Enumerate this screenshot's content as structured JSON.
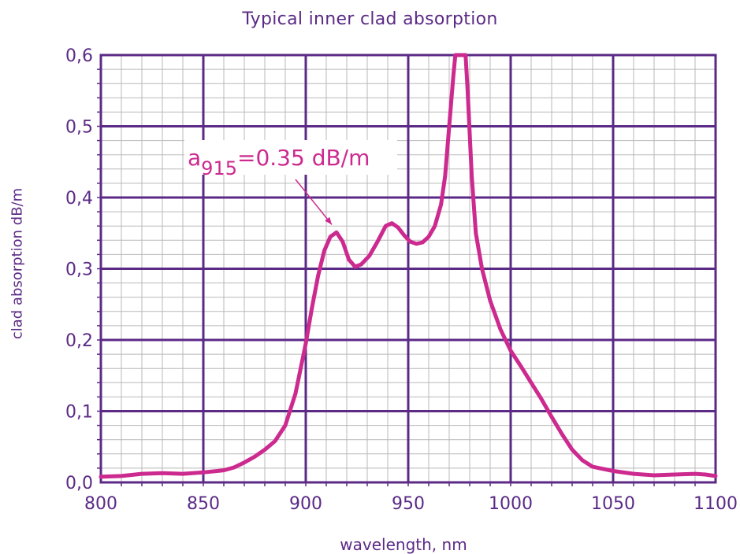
{
  "chart_data": {
    "type": "line",
    "title": "Typical inner clad absorption",
    "xlabel": "wavelength, nm",
    "ylabel": "clad absorption dB/m",
    "xlim": [
      800,
      1100
    ],
    "ylim": [
      0,
      0.6
    ],
    "x_ticks": [
      800,
      850,
      900,
      950,
      1000,
      1050,
      1100
    ],
    "x_tick_labels": [
      "800",
      "850",
      "900",
      "950",
      "1000",
      "1050",
      "1100"
    ],
    "y_ticks": [
      0,
      0.1,
      0.2,
      0.3,
      0.4,
      0.5,
      0.6
    ],
    "y_tick_labels": [
      "0,0",
      "0,1",
      "0,2",
      "0,3",
      "0,4",
      "0,5",
      "0,6"
    ],
    "grid": true,
    "colors": {
      "line": "#cc2a8f",
      "axis": "#5b2a86",
      "minor_grid": "#b9b9b9",
      "text": "#5b2a86"
    },
    "annotation": {
      "main": "a",
      "subscript": "915",
      "rest": "=0.35 dB/m",
      "x": 915,
      "y": 0.351
    },
    "series": [
      {
        "points": [
          [
            800,
            0.008
          ],
          [
            810,
            0.009
          ],
          [
            820,
            0.012
          ],
          [
            830,
            0.013
          ],
          [
            840,
            0.012
          ],
          [
            850,
            0.014
          ],
          [
            860,
            0.017
          ],
          [
            865,
            0.021
          ],
          [
            870,
            0.028
          ],
          [
            875,
            0.036
          ],
          [
            880,
            0.046
          ],
          [
            885,
            0.058
          ],
          [
            890,
            0.08
          ],
          [
            895,
            0.125
          ],
          [
            900,
            0.195
          ],
          [
            903,
            0.245
          ],
          [
            906,
            0.29
          ],
          [
            909,
            0.325
          ],
          [
            912,
            0.345
          ],
          [
            915,
            0.351
          ],
          [
            918,
            0.338
          ],
          [
            921,
            0.313
          ],
          [
            924,
            0.303
          ],
          [
            927,
            0.306
          ],
          [
            931,
            0.318
          ],
          [
            935,
            0.338
          ],
          [
            939,
            0.36
          ],
          [
            942,
            0.364
          ],
          [
            945,
            0.358
          ],
          [
            948,
            0.347
          ],
          [
            951,
            0.338
          ],
          [
            954,
            0.335
          ],
          [
            957,
            0.337
          ],
          [
            960,
            0.345
          ],
          [
            963,
            0.36
          ],
          [
            966,
            0.39
          ],
          [
            968,
            0.43
          ],
          [
            970,
            0.5
          ],
          [
            972,
            0.57
          ],
          [
            973,
            0.6
          ],
          [
            978,
            0.6
          ],
          [
            979,
            0.55
          ],
          [
            981,
            0.43
          ],
          [
            983,
            0.35
          ],
          [
            986,
            0.3
          ],
          [
            990,
            0.255
          ],
          [
            995,
            0.215
          ],
          [
            1000,
            0.185
          ],
          [
            1005,
            0.163
          ],
          [
            1010,
            0.14
          ],
          [
            1015,
            0.117
          ],
          [
            1020,
            0.092
          ],
          [
            1025,
            0.068
          ],
          [
            1030,
            0.046
          ],
          [
            1035,
            0.031
          ],
          [
            1040,
            0.022
          ],
          [
            1050,
            0.016
          ],
          [
            1060,
            0.012
          ],
          [
            1070,
            0.01
          ],
          [
            1080,
            0.011
          ],
          [
            1090,
            0.012
          ],
          [
            1095,
            0.011
          ],
          [
            1100,
            0.009
          ]
        ]
      }
    ]
  }
}
